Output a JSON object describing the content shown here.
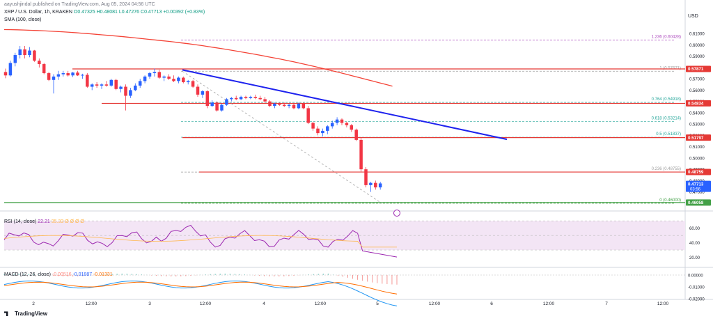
{
  "header": {
    "published_by": "aayushjindal published on TradingView.com, Aug 05, 2024 04:56 UTC",
    "symbol": "XRP / U.S. Dollar, 1h, KRAKEN",
    "ohlc": "O0.47325 H0.48081 L0.47276 C0.47713 +0.00392 (+0.83%)",
    "sma": "SMA (100, close)",
    "currency": "USD"
  },
  "footer": {
    "brand": "TradingView"
  },
  "rsi_label": {
    "name": "RSI (14, close)",
    "value": "22.21",
    "extra": "35.33 Ø Ø Ø Ø"
  },
  "macd_label": {
    "name": "MACD (12, 26, close)",
    "v1": "-0.00516",
    "v2": "-0.01887",
    "v3": "-0.01331"
  },
  "colors": {
    "up": "#2962ff",
    "down": "#f23645",
    "sma": "#f44336",
    "trend": "#1e22ee",
    "support": "#e53935",
    "fib": "#9e9e9e",
    "rsi": "#9c27b0",
    "macd": "#2196f3",
    "signal": "#ff6d00"
  },
  "chart_data": {
    "type": "candlestick",
    "title": "XRP / U.S. Dollar, 1h, KRAKEN",
    "ylim": [
      0.455,
      0.6175
    ],
    "y_ticks": [
      0.61,
      0.6,
      0.59,
      0.58,
      0.57,
      0.56,
      0.55,
      0.54,
      0.53,
      0.52,
      0.51,
      0.5,
      0.49,
      0.48,
      0.47
    ],
    "x_ticks": [
      "2",
      "12:00",
      "3",
      "12:00",
      "4",
      "12:00",
      "5",
      "12:00",
      "6",
      "12:00",
      "7",
      "12:00"
    ],
    "price_tags": [
      {
        "label": "0.57871",
        "value": 0.5787,
        "color": "#e53935"
      },
      {
        "label": "0.54834",
        "value": 0.5483,
        "color": "#e53935"
      },
      {
        "label": "0.51797",
        "value": 0.518,
        "color": "#e53935"
      },
      {
        "label": "0.48759",
        "value": 0.4876,
        "color": "#e53935"
      },
      {
        "label": "0.47713",
        "value": 0.4771,
        "color": "#2962ff",
        "sub": "03:56"
      },
      {
        "label": "0.46058",
        "value": 0.4606,
        "color": "#43a047"
      }
    ],
    "fib_levels": [
      {
        "label": "1.236 (0.60428)",
        "value": 0.60428
      },
      {
        "label": "1 (0.57671)",
        "value": 0.57671
      },
      {
        "label": "0.764 (0.54918)",
        "value": 0.54918
      },
      {
        "label": "0.618 (0.53214)",
        "value": 0.53214
      },
      {
        "label": "0.5 (0.51837)",
        "value": 0.51837
      },
      {
        "label": "0.236 (0.48755)",
        "value": 0.48755
      },
      {
        "label": "0 (0.46000)",
        "value": 0.46
      }
    ],
    "candles": [
      [
        0.576,
        0.579,
        0.5705,
        0.573
      ],
      [
        0.573,
        0.586,
        0.572,
        0.584
      ],
      [
        0.584,
        0.593,
        0.581,
        0.591
      ],
      [
        0.591,
        0.599,
        0.588,
        0.596
      ],
      [
        0.596,
        0.599,
        0.588,
        0.591
      ],
      [
        0.591,
        0.598,
        0.589,
        0.595
      ],
      [
        0.595,
        0.5955,
        0.585,
        0.586
      ],
      [
        0.586,
        0.588,
        0.58,
        0.583
      ],
      [
        0.583,
        0.584,
        0.574,
        0.575
      ],
      [
        0.575,
        0.576,
        0.568,
        0.569
      ],
      [
        0.569,
        0.574,
        0.557,
        0.572
      ],
      [
        0.572,
        0.577,
        0.569,
        0.574
      ],
      [
        0.574,
        0.577,
        0.572,
        0.575
      ],
      [
        0.575,
        0.577,
        0.572,
        0.573
      ],
      [
        0.573,
        0.576,
        0.5715,
        0.5755
      ],
      [
        0.5755,
        0.577,
        0.5725,
        0.573
      ],
      [
        0.573,
        0.5745,
        0.57,
        0.5735
      ],
      [
        0.5735,
        0.575,
        0.562,
        0.563
      ],
      [
        0.563,
        0.566,
        0.56,
        0.565
      ],
      [
        0.565,
        0.567,
        0.562,
        0.564
      ],
      [
        0.564,
        0.566,
        0.561,
        0.565
      ],
      [
        0.565,
        0.568,
        0.563,
        0.564
      ],
      [
        0.564,
        0.57,
        0.563,
        0.569
      ],
      [
        0.569,
        0.57,
        0.56,
        0.561
      ],
      [
        0.561,
        0.564,
        0.558,
        0.563
      ],
      [
        0.563,
        0.565,
        0.542,
        0.555
      ],
      [
        0.555,
        0.562,
        0.553,
        0.56
      ],
      [
        0.56,
        0.566,
        0.559,
        0.564
      ],
      [
        0.564,
        0.57,
        0.562,
        0.568
      ],
      [
        0.568,
        0.573,
        0.566,
        0.572
      ],
      [
        0.572,
        0.576,
        0.57,
        0.575
      ],
      [
        0.575,
        0.579,
        0.572,
        0.576
      ],
      [
        0.576,
        0.578,
        0.57,
        0.571
      ],
      [
        0.571,
        0.573,
        0.568,
        0.572
      ],
      [
        0.572,
        0.574,
        0.569,
        0.57
      ],
      [
        0.57,
        0.573,
        0.567,
        0.568
      ],
      [
        0.568,
        0.572,
        0.566,
        0.571
      ],
      [
        0.571,
        0.572,
        0.566,
        0.567
      ],
      [
        0.567,
        0.569,
        0.565,
        0.568
      ],
      [
        0.568,
        0.569,
        0.562,
        0.563
      ],
      [
        0.563,
        0.565,
        0.554,
        0.556
      ],
      [
        0.556,
        0.56,
        0.553,
        0.559
      ],
      [
        0.559,
        0.56,
        0.544,
        0.546
      ],
      [
        0.546,
        0.551,
        0.545,
        0.549
      ],
      [
        0.549,
        0.55,
        0.541,
        0.542
      ],
      [
        0.542,
        0.548,
        0.541,
        0.547
      ],
      [
        0.547,
        0.553,
        0.546,
        0.552
      ],
      [
        0.552,
        0.554,
        0.55,
        0.553
      ],
      [
        0.553,
        0.555,
        0.551,
        0.552
      ],
      [
        0.552,
        0.555,
        0.551,
        0.554
      ],
      [
        0.554,
        0.555,
        0.552,
        0.553
      ],
      [
        0.553,
        0.555,
        0.552,
        0.554
      ],
      [
        0.554,
        0.556,
        0.552,
        0.553
      ],
      [
        0.553,
        0.555,
        0.551,
        0.552
      ],
      [
        0.552,
        0.554,
        0.549,
        0.55
      ],
      [
        0.55,
        0.551,
        0.545,
        0.546
      ],
      [
        0.546,
        0.549,
        0.544,
        0.548
      ],
      [
        0.548,
        0.549,
        0.546,
        0.547
      ],
      [
        0.547,
        0.549,
        0.545,
        0.546
      ],
      [
        0.546,
        0.548,
        0.544,
        0.547
      ],
      [
        0.547,
        0.548,
        0.543,
        0.544
      ],
      [
        0.544,
        0.549,
        0.543,
        0.548
      ],
      [
        0.548,
        0.549,
        0.543,
        0.544
      ],
      [
        0.544,
        0.546,
        0.53,
        0.531
      ],
      [
        0.531,
        0.532,
        0.524,
        0.526
      ],
      [
        0.526,
        0.528,
        0.52,
        0.522
      ],
      [
        0.522,
        0.526,
        0.519,
        0.524
      ],
      [
        0.524,
        0.529,
        0.521,
        0.528
      ],
      [
        0.528,
        0.533,
        0.526,
        0.531
      ],
      [
        0.531,
        0.536,
        0.529,
        0.534
      ],
      [
        0.534,
        0.535,
        0.529,
        0.531
      ],
      [
        0.531,
        0.532,
        0.527,
        0.529
      ],
      [
        0.529,
        0.53,
        0.523,
        0.525
      ],
      [
        0.525,
        0.526,
        0.515,
        0.516
      ],
      [
        0.516,
        0.518,
        0.488,
        0.49
      ],
      [
        0.49,
        0.492,
        0.474,
        0.476
      ],
      [
        0.476,
        0.479,
        0.47,
        0.478
      ],
      [
        0.478,
        0.48,
        0.472,
        0.474
      ],
      [
        0.474,
        0.479,
        0.472,
        0.4775
      ]
    ],
    "sma": [
      0.6135,
      0.6134,
      0.6133,
      0.6131,
      0.6129,
      0.6127,
      0.6124,
      0.6121,
      0.6118,
      0.6115,
      0.6111,
      0.6107,
      0.6102,
      0.6098,
      0.6093,
      0.6088,
      0.6083,
      0.6078,
      0.6073,
      0.6067,
      0.6061,
      0.6055,
      0.6049,
      0.6043,
      0.6037,
      0.6031,
      0.6024,
      0.6017,
      0.601,
      0.6002,
      0.5994,
      0.5985,
      0.5976,
      0.5967,
      0.5958,
      0.5948,
      0.5938,
      0.5928,
      0.5918,
      0.5907,
      0.5896,
      0.5885,
      0.5874,
      0.5862,
      0.585,
      0.5837,
      0.5824,
      0.5811,
      0.5797,
      0.5783,
      0.5769,
      0.5755,
      0.574,
      0.5725,
      0.571,
      0.5695,
      0.568,
      0.5665,
      0.565,
      0.5635
    ]
  }
}
